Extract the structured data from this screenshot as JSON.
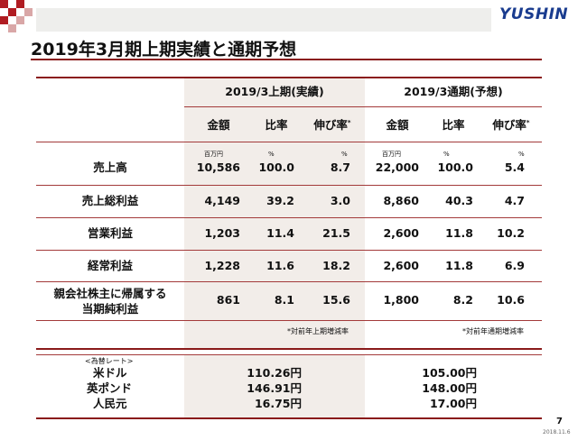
{
  "colors": {
    "accent_dark_red": "#8a1a1a",
    "deco_red": "#b01c22",
    "logo_blue": "#1a3c8f",
    "shade": "#f2ede9"
  },
  "logo_text": "YUSHIN",
  "title": "2019年3月期上期実績と通期予想",
  "groups": {
    "actual": "2019/3上期(実績)",
    "forecast": "2019/3通期(予想)"
  },
  "headers": {
    "amount": "金額",
    "ratio": "比率",
    "growth": "伸び率",
    "growth_mark": "*"
  },
  "units": {
    "amount": "百万円",
    "percent": "%"
  },
  "rows": [
    {
      "label": "売上高",
      "a_amount": "10,586",
      "a_ratio": "100.0",
      "a_growth": "8.7",
      "f_amount": "22,000",
      "f_ratio": "100.0",
      "f_growth": "5.4"
    },
    {
      "label": "売上総利益",
      "a_amount": "4,149",
      "a_ratio": "39.2",
      "a_growth": "3.0",
      "f_amount": "8,860",
      "f_ratio": "40.3",
      "f_growth": "4.7"
    },
    {
      "label": "営業利益",
      "a_amount": "1,203",
      "a_ratio": "11.4",
      "a_growth": "21.5",
      "f_amount": "2,600",
      "f_ratio": "11.8",
      "f_growth": "10.2"
    },
    {
      "label": "経常利益",
      "a_amount": "1,228",
      "a_ratio": "11.6",
      "a_growth": "18.2",
      "f_amount": "2,600",
      "f_ratio": "11.8",
      "f_growth": "6.9"
    },
    {
      "label": "親会社株主に帰属する",
      "label2": "当期純利益",
      "a_amount": "861",
      "a_ratio": "8.1",
      "a_growth": "15.6",
      "f_amount": "1,800",
      "f_ratio": "8.2",
      "f_growth": "10.6"
    }
  ],
  "notes": {
    "actual": "*対前年上期増減率",
    "forecast": "*対前年通期増減率"
  },
  "fx": {
    "heading": "<為替レート>",
    "items": [
      {
        "label": "米ドル",
        "actual": "110.26円",
        "forecast": "105.00円"
      },
      {
        "label": "英ポンド",
        "actual": "146.91円",
        "forecast": "148.00円"
      },
      {
        "label": "人民元",
        "actual": "16.75円",
        "forecast": "17.00円"
      }
    ]
  },
  "page_number": "7",
  "date": "2018.11.6"
}
